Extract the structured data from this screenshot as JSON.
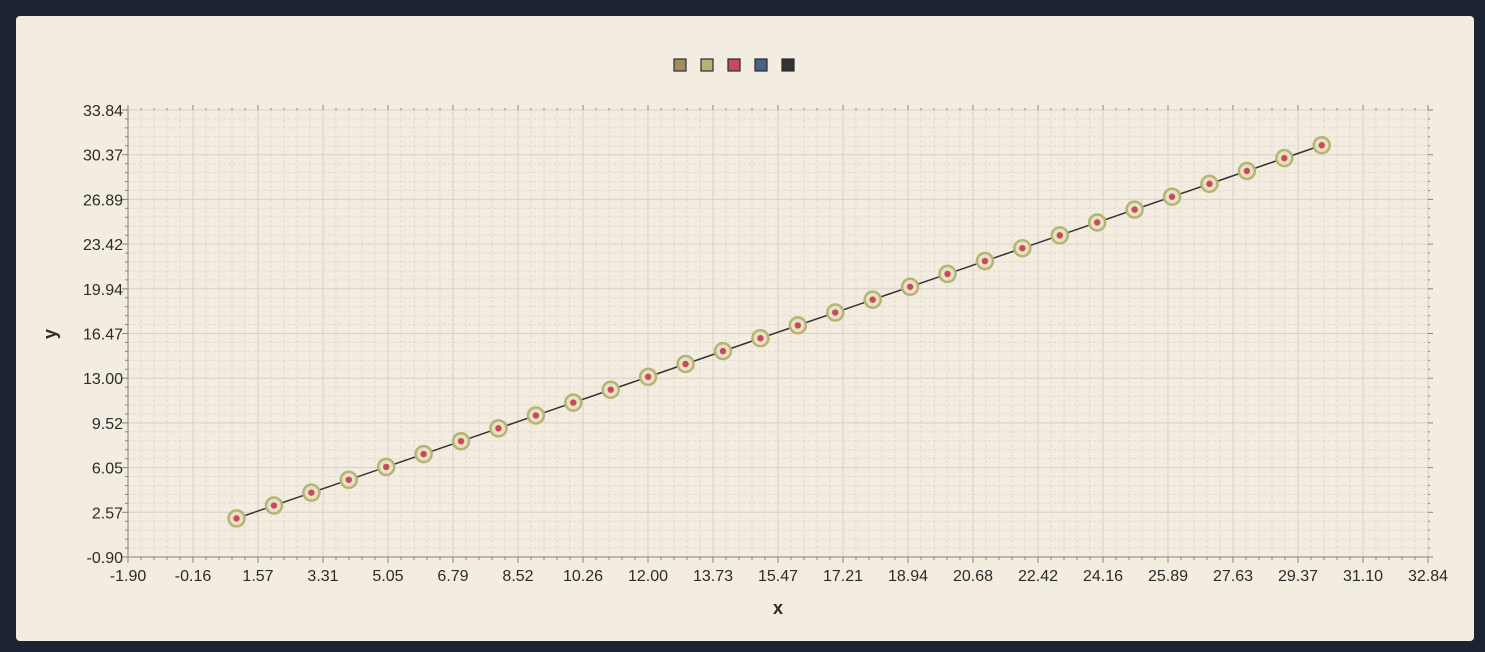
{
  "chart_data": {
    "type": "scatter",
    "title": "",
    "xlabel": "x",
    "ylabel": "y",
    "xlim": [
      -1.9,
      32.84
    ],
    "ylim": [
      -0.9,
      33.84
    ],
    "x_ticks": [
      "-1.90",
      "-0.16",
      "1.57",
      "3.31",
      "5.05",
      "6.79",
      "8.52",
      "10.26",
      "12.00",
      "13.73",
      "15.47",
      "17.21",
      "18.94",
      "20.68",
      "22.42",
      "24.16",
      "25.89",
      "27.63",
      "29.37",
      "31.10",
      "32.84"
    ],
    "y_ticks": [
      "-0.90",
      "2.57",
      "6.05",
      "9.52",
      "13.00",
      "16.47",
      "19.94",
      "23.42",
      "26.89",
      "30.37",
      "33.84"
    ],
    "grid": true,
    "legend_position": "top-center",
    "legend_colors": [
      "#a18d5c",
      "#b5b476",
      "#c94a5c",
      "#4a6080",
      "#333333"
    ],
    "colors": {
      "line": "#333333",
      "marker_ring": "#b5b476",
      "marker_ring_fill": "#e8e2c3",
      "marker_center": "#c94a5c",
      "grid_major": "#d8d2c4",
      "grid_minor": "#e2dccf"
    },
    "x": [
      1.0,
      2.0,
      3.0,
      4.0,
      5.0,
      6.0,
      7.0,
      8.0,
      9.0,
      10.0,
      11.0,
      12.0,
      13.0,
      14.0,
      15.0,
      16.0,
      17.0,
      18.0,
      19.0,
      20.0,
      21.0,
      22.0,
      23.0,
      24.0,
      25.0,
      26.0,
      27.0,
      28.0,
      29.0,
      30.0
    ],
    "series": [
      {
        "values": [
          2.1,
          3.1,
          4.1,
          5.1,
          6.1,
          7.1,
          8.1,
          9.1,
          10.1,
          11.1,
          12.1,
          13.1,
          14.1,
          15.1,
          16.1,
          17.1,
          18.1,
          19.1,
          20.1,
          21.1,
          22.1,
          23.1,
          24.1,
          25.1,
          26.1,
          27.1,
          28.1,
          29.1,
          30.1,
          31.1
        ]
      }
    ]
  }
}
